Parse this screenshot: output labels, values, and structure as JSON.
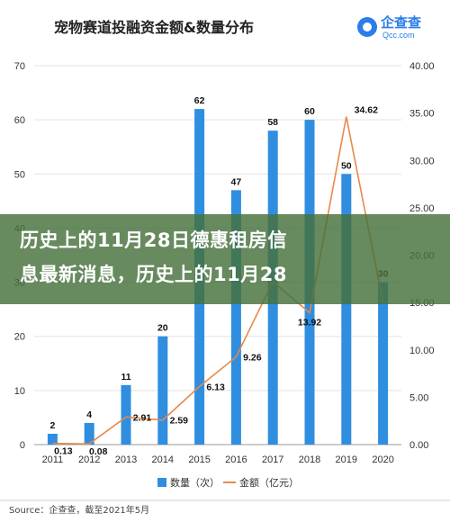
{
  "chart_data": {
    "type": "bar+line",
    "title": "宠物赛道投融资金额&数量分布",
    "categories": [
      "2011",
      "2012",
      "2013",
      "2014",
      "2015",
      "2016",
      "2017",
      "2018",
      "2019",
      "2020"
    ],
    "series": [
      {
        "name": "数量（次）",
        "type": "bar",
        "axis": "left",
        "color": "#2f8ee0",
        "values": [
          2,
          4,
          11,
          20,
          62,
          47,
          58,
          60,
          50,
          30
        ]
      },
      {
        "name": "金额（亿元）",
        "type": "line",
        "axis": "right",
        "color": "#e8894a",
        "values": [
          0.13,
          0.08,
          2.91,
          2.59,
          6.13,
          9.26,
          17.2,
          13.92,
          34.62,
          15.0
        ]
      }
    ],
    "y_left": {
      "min": 0,
      "max": 70,
      "ticks": [
        0,
        10,
        20,
        30,
        40,
        50,
        60,
        70
      ]
    },
    "y_right": {
      "min": 0,
      "max": 40,
      "ticks": [
        "0.00",
        "5.00",
        "10.00",
        "15.00",
        "20.00",
        "25.00",
        "30.00",
        "35.00",
        "40.00"
      ]
    },
    "bar_labels": [
      "2",
      "4",
      "11",
      "20",
      "62",
      "47",
      "58",
      "60",
      "50",
      "30"
    ],
    "line_labels": [
      "0.13",
      "0.08",
      "2.91",
      "2.59",
      "6.13",
      "9.26",
      "",
      "13.92",
      "34.62",
      ""
    ],
    "legend": "bottom",
    "source": "Source：企查查，截至2021年5月"
  },
  "logo": {
    "text": "企查查",
    "sub": "Qcc.com"
  },
  "overlay": {
    "line1": "历史上的11月28日德惠租房信",
    "line2": "息最新消息，历史上的11月28"
  }
}
